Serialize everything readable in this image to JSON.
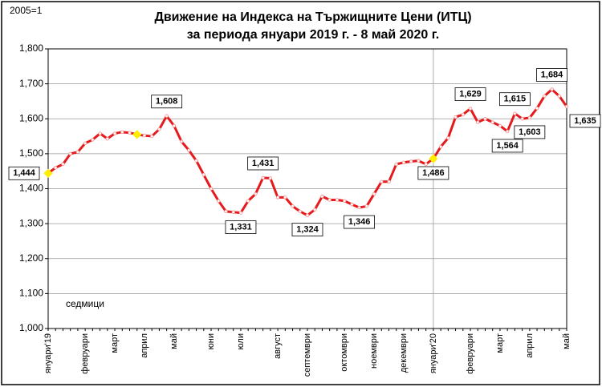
{
  "chart_data": {
    "type": "line",
    "title": "Движение на Индекса на Тържищните Цени (ИТЦ)",
    "subtitle": "за периода януари 2019 г.  - 8 май 2020 г.",
    "base_note": "2005=1",
    "x_label": "седмици",
    "categories": [
      "януари'19",
      null,
      null,
      null,
      null,
      "февруари",
      null,
      null,
      null,
      "март",
      null,
      null,
      null,
      "април",
      null,
      null,
      null,
      "май",
      null,
      null,
      null,
      null,
      "юни",
      null,
      null,
      null,
      "юли",
      null,
      null,
      null,
      null,
      "август",
      null,
      null,
      null,
      "септември",
      null,
      null,
      null,
      null,
      "октомври",
      null,
      null,
      null,
      "ноември",
      null,
      null,
      null,
      "декември",
      null,
      null,
      null,
      "януари'20",
      null,
      null,
      null,
      null,
      "февруари",
      null,
      null,
      null,
      "март",
      null,
      null,
      null,
      "април",
      null,
      null,
      null,
      null,
      "май"
    ],
    "series": [
      {
        "name": "ИТЦ",
        "color": "#e41a1c",
        "values": [
          1444,
          1460,
          1470,
          1500,
          1505,
          1530,
          1540,
          1558,
          1543,
          1558,
          1562,
          1560,
          1555,
          1552,
          1550,
          1570,
          1608,
          1580,
          1535,
          1510,
          1480,
          1440,
          1400,
          1365,
          1335,
          1333,
          1331,
          1365,
          1385,
          1431,
          1430,
          1375,
          1375,
          1350,
          1335,
          1324,
          1340,
          1378,
          1368,
          1368,
          1365,
          1355,
          1346,
          1350,
          1385,
          1420,
          1420,
          1470,
          1475,
          1478,
          1480,
          1470,
          1486,
          1520,
          1545,
          1605,
          1612,
          1629,
          1590,
          1600,
          1590,
          1580,
          1564,
          1615,
          1600,
          1603,
          1630,
          1665,
          1684,
          1665,
          1635
        ],
        "value_labels": [
          "1,444",
          null,
          null,
          null,
          null,
          null,
          null,
          null,
          null,
          null,
          null,
          null,
          null,
          null,
          null,
          null,
          "1,608",
          null,
          null,
          null,
          null,
          null,
          null,
          null,
          null,
          null,
          "1,331",
          null,
          null,
          "1,431",
          null,
          null,
          null,
          null,
          null,
          "1,324",
          null,
          null,
          null,
          null,
          null,
          null,
          "1,346",
          null,
          null,
          null,
          null,
          null,
          null,
          null,
          null,
          null,
          "1,486",
          null,
          null,
          null,
          null,
          "1,629",
          null,
          null,
          null,
          null,
          "1,564",
          "1,615",
          null,
          "1,603",
          null,
          null,
          "1,684",
          null,
          "1,635"
        ]
      }
    ],
    "highlight_indices": [
      0,
      12,
      52
    ],
    "highlight_color": "#ffee00",
    "vline_index": 52,
    "ylim": [
      1000,
      1800
    ],
    "yticks": [
      {
        "value": 1000,
        "label": "1,000"
      },
      {
        "value": 1100,
        "label": "1,100"
      },
      {
        "value": 1200,
        "label": "1,200"
      },
      {
        "value": 1300,
        "label": "1,300"
      },
      {
        "value": 1400,
        "label": "1,400"
      },
      {
        "value": 1500,
        "label": "1,500"
      },
      {
        "value": 1600,
        "label": "1,600"
      },
      {
        "value": 1700,
        "label": "1,700"
      },
      {
        "value": 1800,
        "label": "1,800"
      }
    ],
    "grid": true
  }
}
